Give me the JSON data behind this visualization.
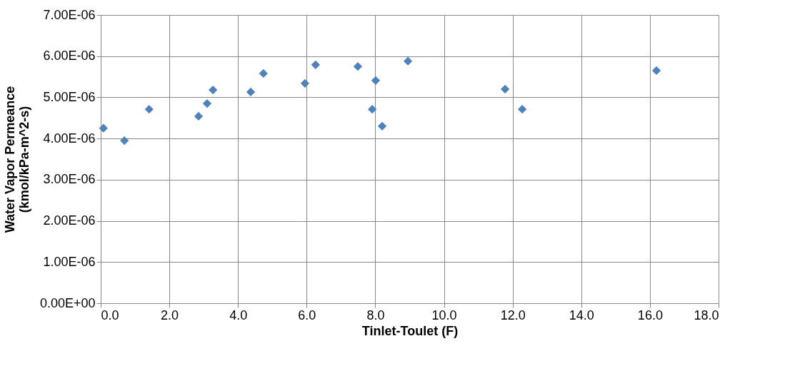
{
  "chart_data": {
    "type": "scatter",
    "xlabel": "Tinlet-Toulet (F)",
    "ylabel": "Water Vapor Permeance (kmol/kPa-m^2-s)",
    "x": [
      0.08,
      0.69,
      1.41,
      2.85,
      3.1,
      3.27,
      4.37,
      4.74,
      5.95,
      6.26,
      7.49,
      8.01,
      7.91,
      8.2,
      8.95,
      11.78,
      12.28,
      16.19
    ],
    "series": [
      {
        "color": "#4f81bd",
        "values": [
          4.25e-06,
          3.95e-06,
          4.71e-06,
          4.54e-06,
          4.85e-06,
          5.18e-06,
          5.13e-06,
          5.58e-06,
          5.34e-06,
          5.79e-06,
          5.75e-06,
          5.41e-06,
          4.71e-06,
          4.3e-06,
          5.88e-06,
          5.2e-06,
          4.71e-06,
          5.65e-06
        ]
      }
    ],
    "xlim": [
      0,
      18
    ],
    "xticks": [
      {
        "value": 0,
        "label": "0.0"
      },
      {
        "value": 2,
        "label": "2.0"
      },
      {
        "value": 4,
        "label": "4.0"
      },
      {
        "value": 6,
        "label": "6.0"
      },
      {
        "value": 8,
        "label": "8.0"
      },
      {
        "value": 10,
        "label": "10.0"
      },
      {
        "value": 12,
        "label": "12.0"
      },
      {
        "value": 14,
        "label": "14.0"
      },
      {
        "value": 16,
        "label": "16.0"
      },
      {
        "value": 18,
        "label": "18.0"
      }
    ],
    "ylim": [
      0,
      7e-06
    ],
    "yticks": [
      {
        "value": 0,
        "label": "0.00E+00"
      },
      {
        "value": 1e-06,
        "label": "1.00E-06"
      },
      {
        "value": 2e-06,
        "label": "2.00E-06"
      },
      {
        "value": 3e-06,
        "label": "3.00E-06"
      },
      {
        "value": 4e-06,
        "label": "4.00E-06"
      },
      {
        "value": 5e-06,
        "label": "5.00E-06"
      },
      {
        "value": 6e-06,
        "label": "6.00E-06"
      },
      {
        "value": 7e-06,
        "label": "7.00E-06"
      }
    ],
    "grid": true,
    "marker": "diamond"
  }
}
